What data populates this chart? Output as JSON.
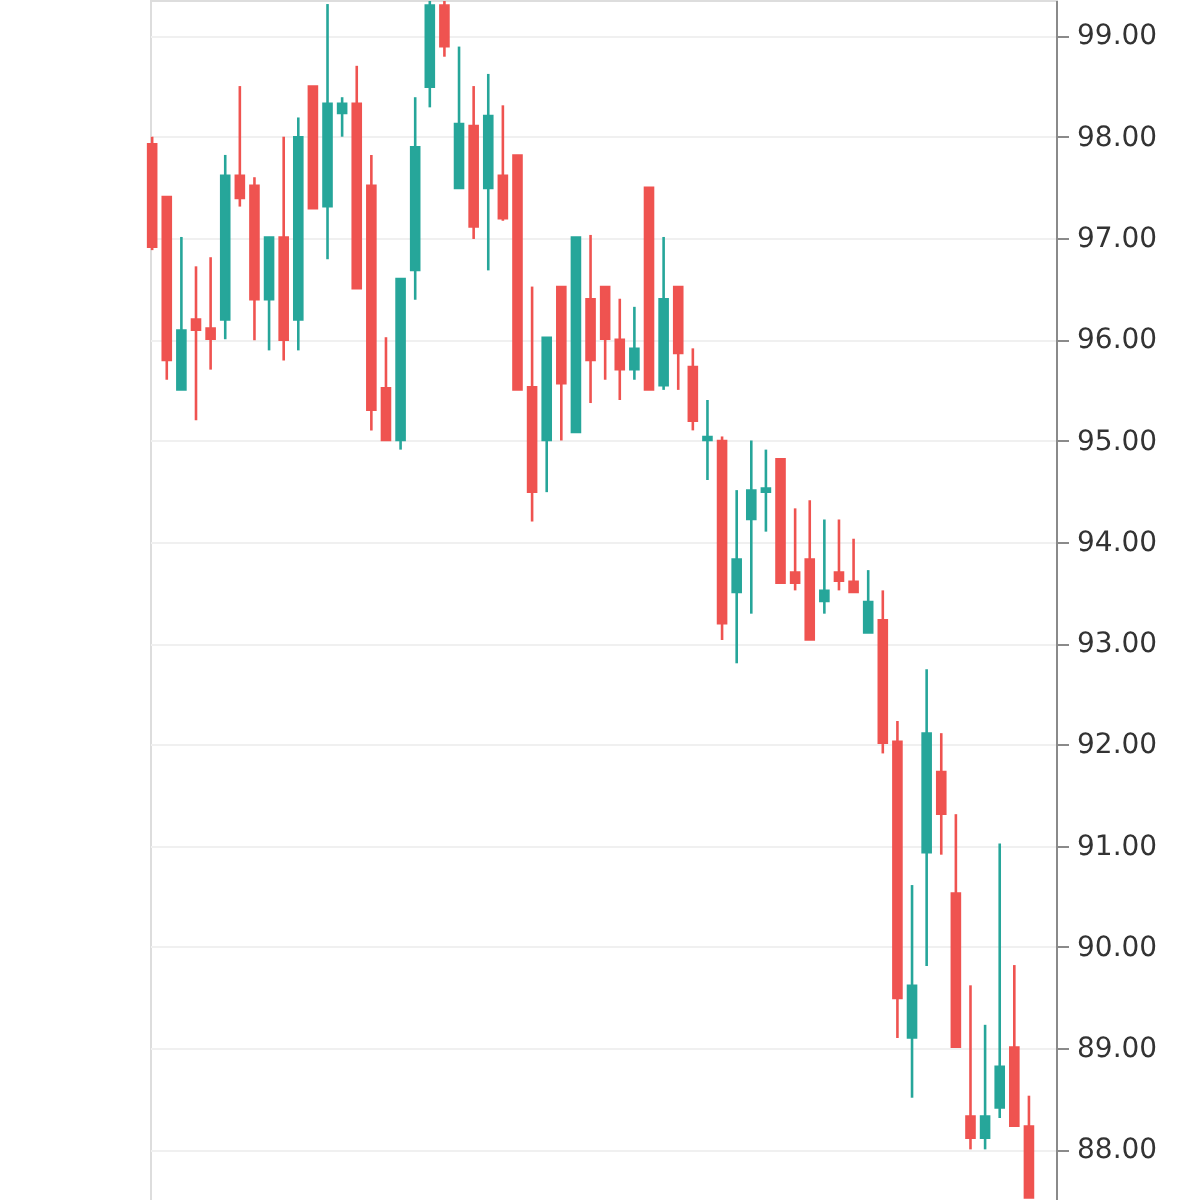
{
  "chart_data": {
    "type": "candlestick",
    "categories": [
      null,
      null,
      null,
      null,
      null,
      null,
      null,
      null,
      null,
      null,
      null,
      null,
      null,
      null,
      null,
      null,
      null,
      null,
      null,
      null,
      null,
      null,
      null,
      null,
      null,
      null,
      null,
      null,
      null,
      null,
      null,
      null,
      null,
      null,
      null,
      null,
      null,
      null,
      null,
      null,
      null,
      null,
      null,
      null,
      null,
      null,
      null,
      null,
      null,
      null,
      null,
      null,
      null,
      null,
      null,
      null,
      null,
      null,
      null,
      null,
      null
    ],
    "ohlc": [
      [
        97.93,
        98.0,
        96.88,
        96.91
      ],
      [
        97.41,
        97.41,
        95.6,
        95.79
      ],
      [
        95.5,
        97.01,
        95.5,
        96.09
      ],
      [
        96.2,
        96.72,
        95.2,
        96.09
      ],
      [
        96.11,
        96.81,
        95.7,
        96.0
      ],
      [
        96.19,
        97.82,
        96.0,
        97.62
      ],
      [
        97.62,
        98.5,
        97.31,
        97.39
      ],
      [
        97.52,
        97.6,
        95.99,
        96.39
      ],
      [
        96.39,
        97.01,
        95.89,
        97.01
      ],
      [
        97.01,
        98.0,
        95.79,
        95.99
      ],
      [
        96.19,
        98.19,
        95.89,
        98.0
      ],
      [
        98.5,
        98.5,
        97.29,
        97.29
      ],
      [
        97.31,
        99.31,
        96.79,
        98.33
      ],
      [
        98.23,
        98.39,
        98.0,
        98.33
      ],
      [
        98.33,
        98.7,
        96.5,
        96.5
      ],
      [
        97.52,
        97.82,
        95.1,
        95.3
      ],
      [
        95.52,
        96.02,
        95.0,
        95.0
      ],
      [
        95.0,
        96.6,
        94.91,
        96.6
      ],
      [
        96.68,
        98.39,
        96.39,
        97.9
      ],
      [
        98.49,
        99.34,
        98.29,
        99.3
      ],
      [
        99.3,
        99.34,
        98.79,
        98.89
      ],
      [
        97.49,
        98.89,
        97.49,
        98.13
      ],
      [
        98.11,
        98.5,
        96.99,
        97.11
      ],
      [
        97.49,
        98.62,
        96.68,
        98.21
      ],
      [
        97.62,
        98.31,
        97.17,
        97.19
      ],
      [
        97.82,
        97.82,
        95.5,
        95.5
      ],
      [
        95.53,
        96.52,
        94.2,
        94.49
      ],
      [
        95.0,
        96.02,
        94.49,
        96.02
      ],
      [
        96.52,
        96.52,
        95.0,
        95.56
      ],
      [
        95.08,
        97.01,
        95.08,
        97.01
      ],
      [
        96.4,
        97.03,
        95.37,
        95.79
      ],
      [
        96.52,
        96.52,
        95.6,
        96.0
      ],
      [
        96.0,
        96.4,
        95.4,
        95.7
      ],
      [
        95.7,
        96.32,
        95.6,
        95.91
      ],
      [
        97.5,
        97.5,
        95.5,
        95.5
      ],
      [
        95.54,
        97.01,
        95.5,
        96.4
      ],
      [
        96.52,
        96.52,
        95.5,
        95.86
      ],
      [
        95.73,
        95.91,
        95.1,
        95.19
      ],
      [
        95.0,
        95.4,
        94.61,
        95.04
      ],
      [
        95.0,
        95.04,
        93.03,
        93.19
      ],
      [
        93.5,
        94.51,
        92.8,
        93.83
      ],
      [
        94.22,
        95.0,
        93.29,
        94.51
      ],
      [
        94.49,
        94.91,
        94.1,
        94.53
      ],
      [
        94.82,
        94.82,
        93.59,
        93.59
      ],
      [
        93.7,
        94.33,
        93.52,
        93.59
      ],
      [
        93.83,
        94.41,
        93.03,
        93.03
      ],
      [
        93.41,
        94.22,
        93.29,
        93.52
      ],
      [
        93.7,
        94.22,
        93.52,
        93.61
      ],
      [
        93.61,
        94.03,
        93.5,
        93.5
      ],
      [
        93.1,
        93.72,
        93.1,
        93.41
      ],
      [
        93.23,
        93.52,
        91.91,
        92.01
      ],
      [
        92.03,
        92.23,
        89.1,
        89.49
      ],
      [
        89.1,
        90.61,
        88.51,
        89.62
      ],
      [
        90.93,
        92.74,
        89.81,
        92.11
      ],
      [
        91.73,
        92.11,
        90.91,
        91.31
      ],
      [
        90.53,
        91.31,
        89.01,
        89.01
      ],
      [
        88.33,
        89.62,
        88.0,
        88.11
      ],
      [
        88.11,
        89.23,
        88.0,
        88.33
      ],
      [
        88.41,
        91.02,
        88.31,
        88.82
      ],
      [
        89.01,
        89.82,
        88.23,
        88.23
      ],
      [
        88.23,
        88.53,
        87.52,
        87.52
      ]
    ],
    "colors": [
      "#ef5350",
      "#ef5350",
      "#26a69a",
      "#ef5350",
      "#ef5350",
      "#26a69a",
      "#ef5350",
      "#ef5350",
      "#26a69a",
      "#ef5350",
      "#26a69a",
      "#ef5350",
      "#26a69a",
      "#26a69a",
      "#ef5350",
      "#ef5350",
      "#ef5350",
      "#26a69a",
      "#26a69a",
      "#26a69a",
      "#ef5350",
      "#26a69a",
      "#ef5350",
      "#26a69a",
      "#ef5350",
      "#ef5350",
      "#ef5350",
      "#26a69a",
      "#ef5350",
      "#26a69a",
      "#ef5350",
      "#ef5350",
      "#ef5350",
      "#26a69a",
      "#ef5350",
      "#26a69a",
      "#ef5350",
      "#ef5350",
      "#26a69a",
      "#ef5350",
      "#26a69a",
      "#26a69a",
      "#26a69a",
      "#ef5350",
      "#ef5350",
      "#ef5350",
      "#26a69a",
      "#ef5350",
      "#ef5350",
      "#26a69a",
      "#ef5350",
      "#ef5350",
      "#26a69a",
      "#26a69a",
      "#ef5350",
      "#ef5350",
      "#ef5350",
      "#26a69a",
      "#26a69a",
      "#ef5350",
      "#ef5350"
    ],
    "ylim": [
      87.5,
      99.35
    ],
    "yticks": [
      {
        "value": 88,
        "label": "88.00"
      },
      {
        "value": 89,
        "label": "89.00"
      },
      {
        "value": 90,
        "label": "90.00"
      },
      {
        "value": 91,
        "label": "91.00"
      },
      {
        "value": 92,
        "label": "92.00"
      },
      {
        "value": 93,
        "label": "93.00"
      },
      {
        "value": 94,
        "label": "94.00"
      },
      {
        "value": 95,
        "label": "95.00"
      },
      {
        "value": 96,
        "label": "96.00"
      },
      {
        "value": 97,
        "label": "97.00"
      },
      {
        "value": 98,
        "label": "98.00"
      },
      {
        "value": 99,
        "label": "99.00"
      }
    ],
    "grid": "y",
    "tick_labels": "y"
  }
}
